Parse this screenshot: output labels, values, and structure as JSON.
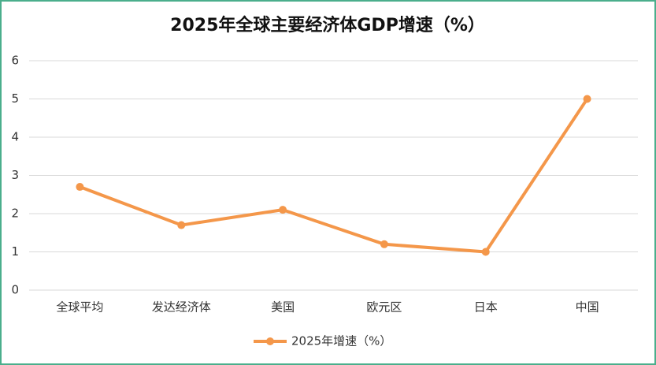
{
  "chart_data": {
    "type": "line",
    "title": "2025年全球主要经济体GDP增速（%）",
    "categories": [
      "全球平均",
      "发达经济体",
      "美国",
      "欧元区",
      "日本",
      "中国"
    ],
    "series": [
      {
        "name": "2025年增速（%）",
        "color": "#f4974a",
        "values": [
          2.7,
          1.7,
          2.1,
          1.2,
          1.0,
          5.0
        ]
      }
    ],
    "ylim": [
      0,
      6
    ],
    "yticks": [
      0,
      1,
      2,
      3,
      4,
      5,
      6
    ],
    "grid": true,
    "legend": "bottom"
  }
}
